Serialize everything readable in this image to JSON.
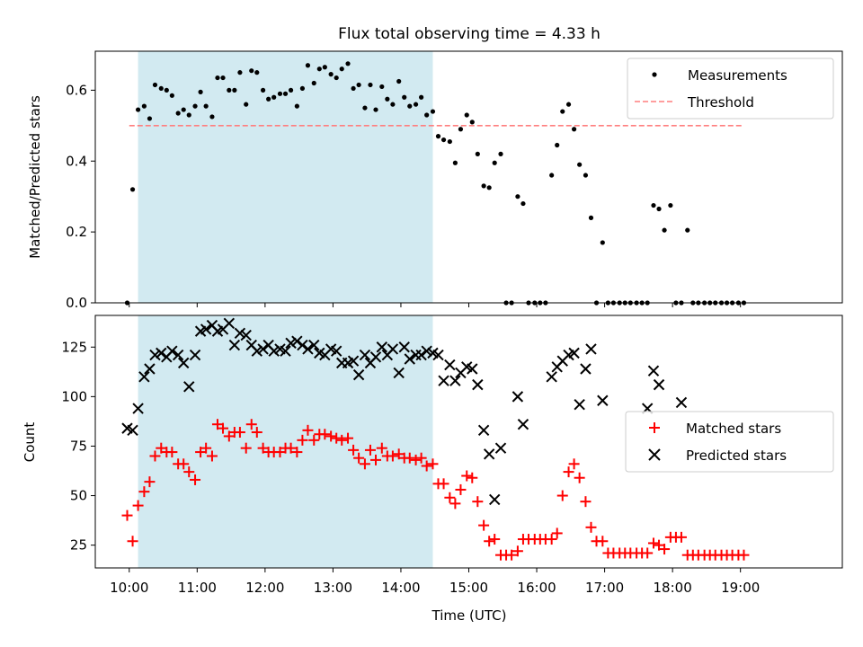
{
  "chart_data": [
    {
      "type": "scatter",
      "title": "Flux total observing time = 4.33 h",
      "xlabel": "",
      "ylabel": "Matched/Predicted stars",
      "xlim": [
        9.5,
        20.5
      ],
      "ylim": [
        0,
        0.71
      ],
      "yticks": [
        0.0,
        0.2,
        0.4,
        0.6
      ],
      "ytick_labels": [
        "0.0",
        "0.2",
        "0.4",
        "0.6"
      ],
      "shaded_interval": [
        10.13,
        14.47
      ],
      "shade_color": "#add8e6",
      "legend_position": "upper right",
      "threshold": {
        "name": "Threshold",
        "y": 0.5,
        "x_range": [
          10.0,
          19.05
        ],
        "color": "#ff7f7f",
        "style": "dashed"
      },
      "series": [
        {
          "name": "Measurements",
          "marker": "dot",
          "color": "#000000",
          "x": [
            9.97,
            10.05,
            10.13,
            10.22,
            10.3,
            10.38,
            10.47,
            10.55,
            10.63,
            10.72,
            10.8,
            10.88,
            10.97,
            11.05,
            11.13,
            11.22,
            11.3,
            11.38,
            11.47,
            11.55,
            11.63,
            11.72,
            11.8,
            11.88,
            11.97,
            12.05,
            12.13,
            12.22,
            12.3,
            12.38,
            12.47,
            12.55,
            12.63,
            12.72,
            12.8,
            12.88,
            12.97,
            13.05,
            13.13,
            13.22,
            13.3,
            13.38,
            13.47,
            13.55,
            13.63,
            13.72,
            13.8,
            13.88,
            13.97,
            14.05,
            14.13,
            14.22,
            14.3,
            14.38,
            14.47,
            14.55,
            14.63,
            14.72,
            14.8,
            14.88,
            14.97,
            15.05,
            15.13,
            15.22,
            15.3,
            15.38,
            15.47,
            15.55,
            15.63,
            15.72,
            15.8,
            15.88,
            15.97,
            16.05,
            16.13,
            16.22,
            16.3,
            16.38,
            16.47,
            16.55,
            16.63,
            16.72,
            16.8,
            16.88,
            16.97,
            17.05,
            17.13,
            17.22,
            17.3,
            17.38,
            17.47,
            17.55,
            17.63,
            17.72,
            17.8,
            17.88,
            17.97,
            18.05,
            18.13,
            18.22,
            18.3,
            18.38,
            18.47,
            18.55,
            18.63,
            18.72,
            18.8,
            18.88,
            18.97,
            19.05
          ],
          "y": [
            0.0,
            0.32,
            0.545,
            0.555,
            0.52,
            0.615,
            0.605,
            0.6,
            0.585,
            0.535,
            0.545,
            0.53,
            0.555,
            0.595,
            0.555,
            0.525,
            0.635,
            0.635,
            0.6,
            0.6,
            0.65,
            0.56,
            0.655,
            0.65,
            0.6,
            0.575,
            0.58,
            0.59,
            0.59,
            0.6,
            0.555,
            0.605,
            0.67,
            0.62,
            0.66,
            0.665,
            0.645,
            0.635,
            0.66,
            0.675,
            0.605,
            0.615,
            0.55,
            0.615,
            0.545,
            0.61,
            0.575,
            0.56,
            0.625,
            0.58,
            0.555,
            0.56,
            0.58,
            0.53,
            0.54,
            0.47,
            0.46,
            0.455,
            0.395,
            0.49,
            0.53,
            0.51,
            0.42,
            0.33,
            0.325,
            0.395,
            0.42,
            0.0,
            0.0,
            0.3,
            0.28,
            0.0,
            0.0,
            0.0,
            0.0,
            0.36,
            0.445,
            0.54,
            0.56,
            0.49,
            0.39,
            0.36,
            0.24,
            0.0,
            0.17,
            0.0,
            0.0,
            0.0,
            0.0,
            0.0,
            0.0,
            0.0,
            0.0,
            0.275,
            0.265,
            0.205,
            0.275,
            0.0,
            0.0,
            0.205,
            0.0,
            0.0,
            0.0,
            0.0,
            0.0,
            0.0,
            0.0,
            0.0,
            0.0,
            0.0
          ]
        }
      ]
    },
    {
      "type": "scatter",
      "xlabel": "Time (UTC)",
      "ylabel": "Count",
      "xlim": [
        9.5,
        20.5
      ],
      "ylim": [
        13.5,
        141
      ],
      "xticks": [
        10,
        11,
        12,
        13,
        14,
        15,
        16,
        17,
        18,
        19
      ],
      "xtick_labels": [
        "10:00",
        "11:00",
        "12:00",
        "13:00",
        "14:00",
        "15:00",
        "16:00",
        "17:00",
        "18:00",
        "19:00"
      ],
      "yticks": [
        25,
        50,
        75,
        100,
        125
      ],
      "ytick_labels": [
        "25",
        "50",
        "75",
        "100",
        "125"
      ],
      "shaded_interval": [
        10.13,
        14.47
      ],
      "shade_color": "#add8e6",
      "legend_position": "center right",
      "series": [
        {
          "name": "Matched stars",
          "marker": "plus",
          "color": "#ff0000",
          "x": [
            9.97,
            10.05,
            10.13,
            10.22,
            10.3,
            10.38,
            10.47,
            10.55,
            10.63,
            10.72,
            10.8,
            10.88,
            10.97,
            11.05,
            11.13,
            11.22,
            11.3,
            11.38,
            11.47,
            11.55,
            11.63,
            11.72,
            11.8,
            11.88,
            11.97,
            12.05,
            12.13,
            12.22,
            12.3,
            12.38,
            12.47,
            12.55,
            12.63,
            12.72,
            12.8,
            12.88,
            12.97,
            13.05,
            13.13,
            13.22,
            13.3,
            13.38,
            13.47,
            13.55,
            13.63,
            13.72,
            13.8,
            13.88,
            13.97,
            14.05,
            14.13,
            14.22,
            14.3,
            14.38,
            14.47,
            14.55,
            14.63,
            14.72,
            14.8,
            14.88,
            14.97,
            15.05,
            15.13,
            15.22,
            15.3,
            15.38,
            15.47,
            15.55,
            15.63,
            15.72,
            15.8,
            15.88,
            15.97,
            16.05,
            16.13,
            16.22,
            16.3,
            16.38,
            16.47,
            16.55,
            16.63,
            16.72,
            16.8,
            16.88,
            16.97,
            17.05,
            17.13,
            17.22,
            17.3,
            17.38,
            17.47,
            17.55,
            17.63,
            17.72,
            17.8,
            17.88,
            17.97,
            18.05,
            18.13,
            18.22,
            18.3,
            18.38,
            18.47,
            18.55,
            18.63,
            18.72,
            18.8,
            18.88,
            18.97,
            19.05
          ],
          "y": [
            40,
            27,
            45,
            52,
            57,
            70,
            74,
            72,
            72,
            66,
            66,
            62,
            58,
            72,
            74,
            70,
            86,
            84,
            80,
            82,
            82,
            74,
            86,
            82,
            74,
            72,
            72,
            72,
            74,
            74,
            72,
            78,
            83,
            78,
            81,
            81,
            80,
            79,
            78,
            79,
            73,
            69,
            66,
            73,
            68,
            74,
            70,
            70,
            71,
            69,
            69,
            68,
            69,
            65,
            66,
            56,
            56,
            49,
            46,
            53,
            60,
            59,
            47,
            35,
            27,
            28,
            20,
            20,
            20,
            22,
            28,
            28,
            28,
            28,
            28,
            28,
            31,
            50,
            62,
            66,
            59,
            47,
            34,
            27,
            27,
            21,
            21,
            21,
            21,
            21,
            21,
            21,
            21,
            26,
            25,
            23,
            29,
            29,
            29,
            20,
            20,
            20,
            20,
            20,
            20,
            20,
            20,
            20,
            20,
            20
          ]
        },
        {
          "name": "Predicted stars",
          "marker": "x",
          "color": "#000000",
          "x": [
            9.97,
            10.05,
            10.13,
            10.22,
            10.3,
            10.38,
            10.47,
            10.55,
            10.63,
            10.72,
            10.8,
            10.88,
            10.97,
            11.05,
            11.13,
            11.22,
            11.3,
            11.38,
            11.47,
            11.55,
            11.63,
            11.72,
            11.8,
            11.88,
            11.97,
            12.05,
            12.13,
            12.22,
            12.3,
            12.38,
            12.47,
            12.55,
            12.63,
            12.72,
            12.8,
            12.88,
            12.97,
            13.05,
            13.13,
            13.22,
            13.3,
            13.38,
            13.47,
            13.55,
            13.63,
            13.72,
            13.8,
            13.88,
            13.97,
            14.05,
            14.13,
            14.22,
            14.3,
            14.38,
            14.47,
            14.55,
            14.63,
            14.72,
            14.8,
            14.88,
            14.97,
            15.05,
            15.13,
            15.22,
            15.3,
            15.38,
            15.47,
            15.72,
            15.8,
            16.22,
            16.3,
            16.38,
            16.47,
            16.55,
            16.63,
            16.72,
            16.8,
            16.97,
            17.63,
            17.72,
            17.8,
            18.13
          ],
          "y": [
            84,
            83,
            94,
            110,
            114,
            121,
            122,
            120,
            123,
            121,
            117,
            105,
            121,
            133,
            134,
            136,
            133,
            134,
            137,
            126,
            132,
            131,
            126,
            123,
            124,
            126,
            123,
            124,
            123,
            127,
            128,
            126,
            124,
            126,
            122,
            121,
            124,
            123,
            117,
            117,
            118,
            111,
            121,
            117,
            120,
            125,
            121,
            124,
            112,
            125,
            119,
            121,
            121,
            123,
            122,
            121,
            108,
            116,
            108,
            112,
            115,
            114,
            106,
            83,
            71,
            48,
            74,
            100,
            86,
            110,
            115,
            118,
            121,
            122,
            96,
            114,
            124,
            98,
            94,
            113,
            106,
            97
          ]
        }
      ]
    }
  ]
}
